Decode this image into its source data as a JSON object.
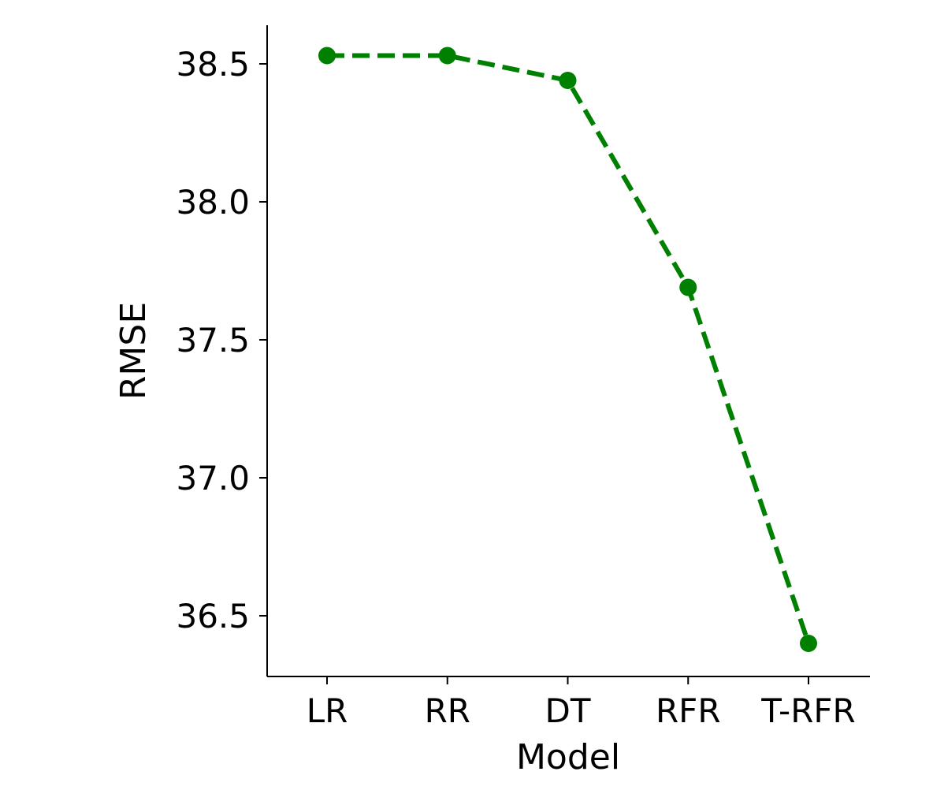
{
  "chart_data": {
    "type": "line",
    "categories": [
      "LR",
      "RR",
      "DT",
      "RFR",
      "T-RFR"
    ],
    "series": [
      {
        "values": [
          38.53,
          38.53,
          38.44,
          37.69,
          36.4
        ],
        "color": "#008000",
        "line_style": "dashed",
        "marker": "circle"
      }
    ],
    "xlabel": "Model",
    "ylabel": "RMSE",
    "ylim": [
      36.28,
      38.64
    ],
    "yticks": [
      36.5,
      37.0,
      37.5,
      38.0,
      38.5
    ],
    "ytick_labels": [
      "36.5",
      "37.0",
      "37.5",
      "38.0",
      "38.5"
    ],
    "grid": false,
    "legend": "none"
  }
}
